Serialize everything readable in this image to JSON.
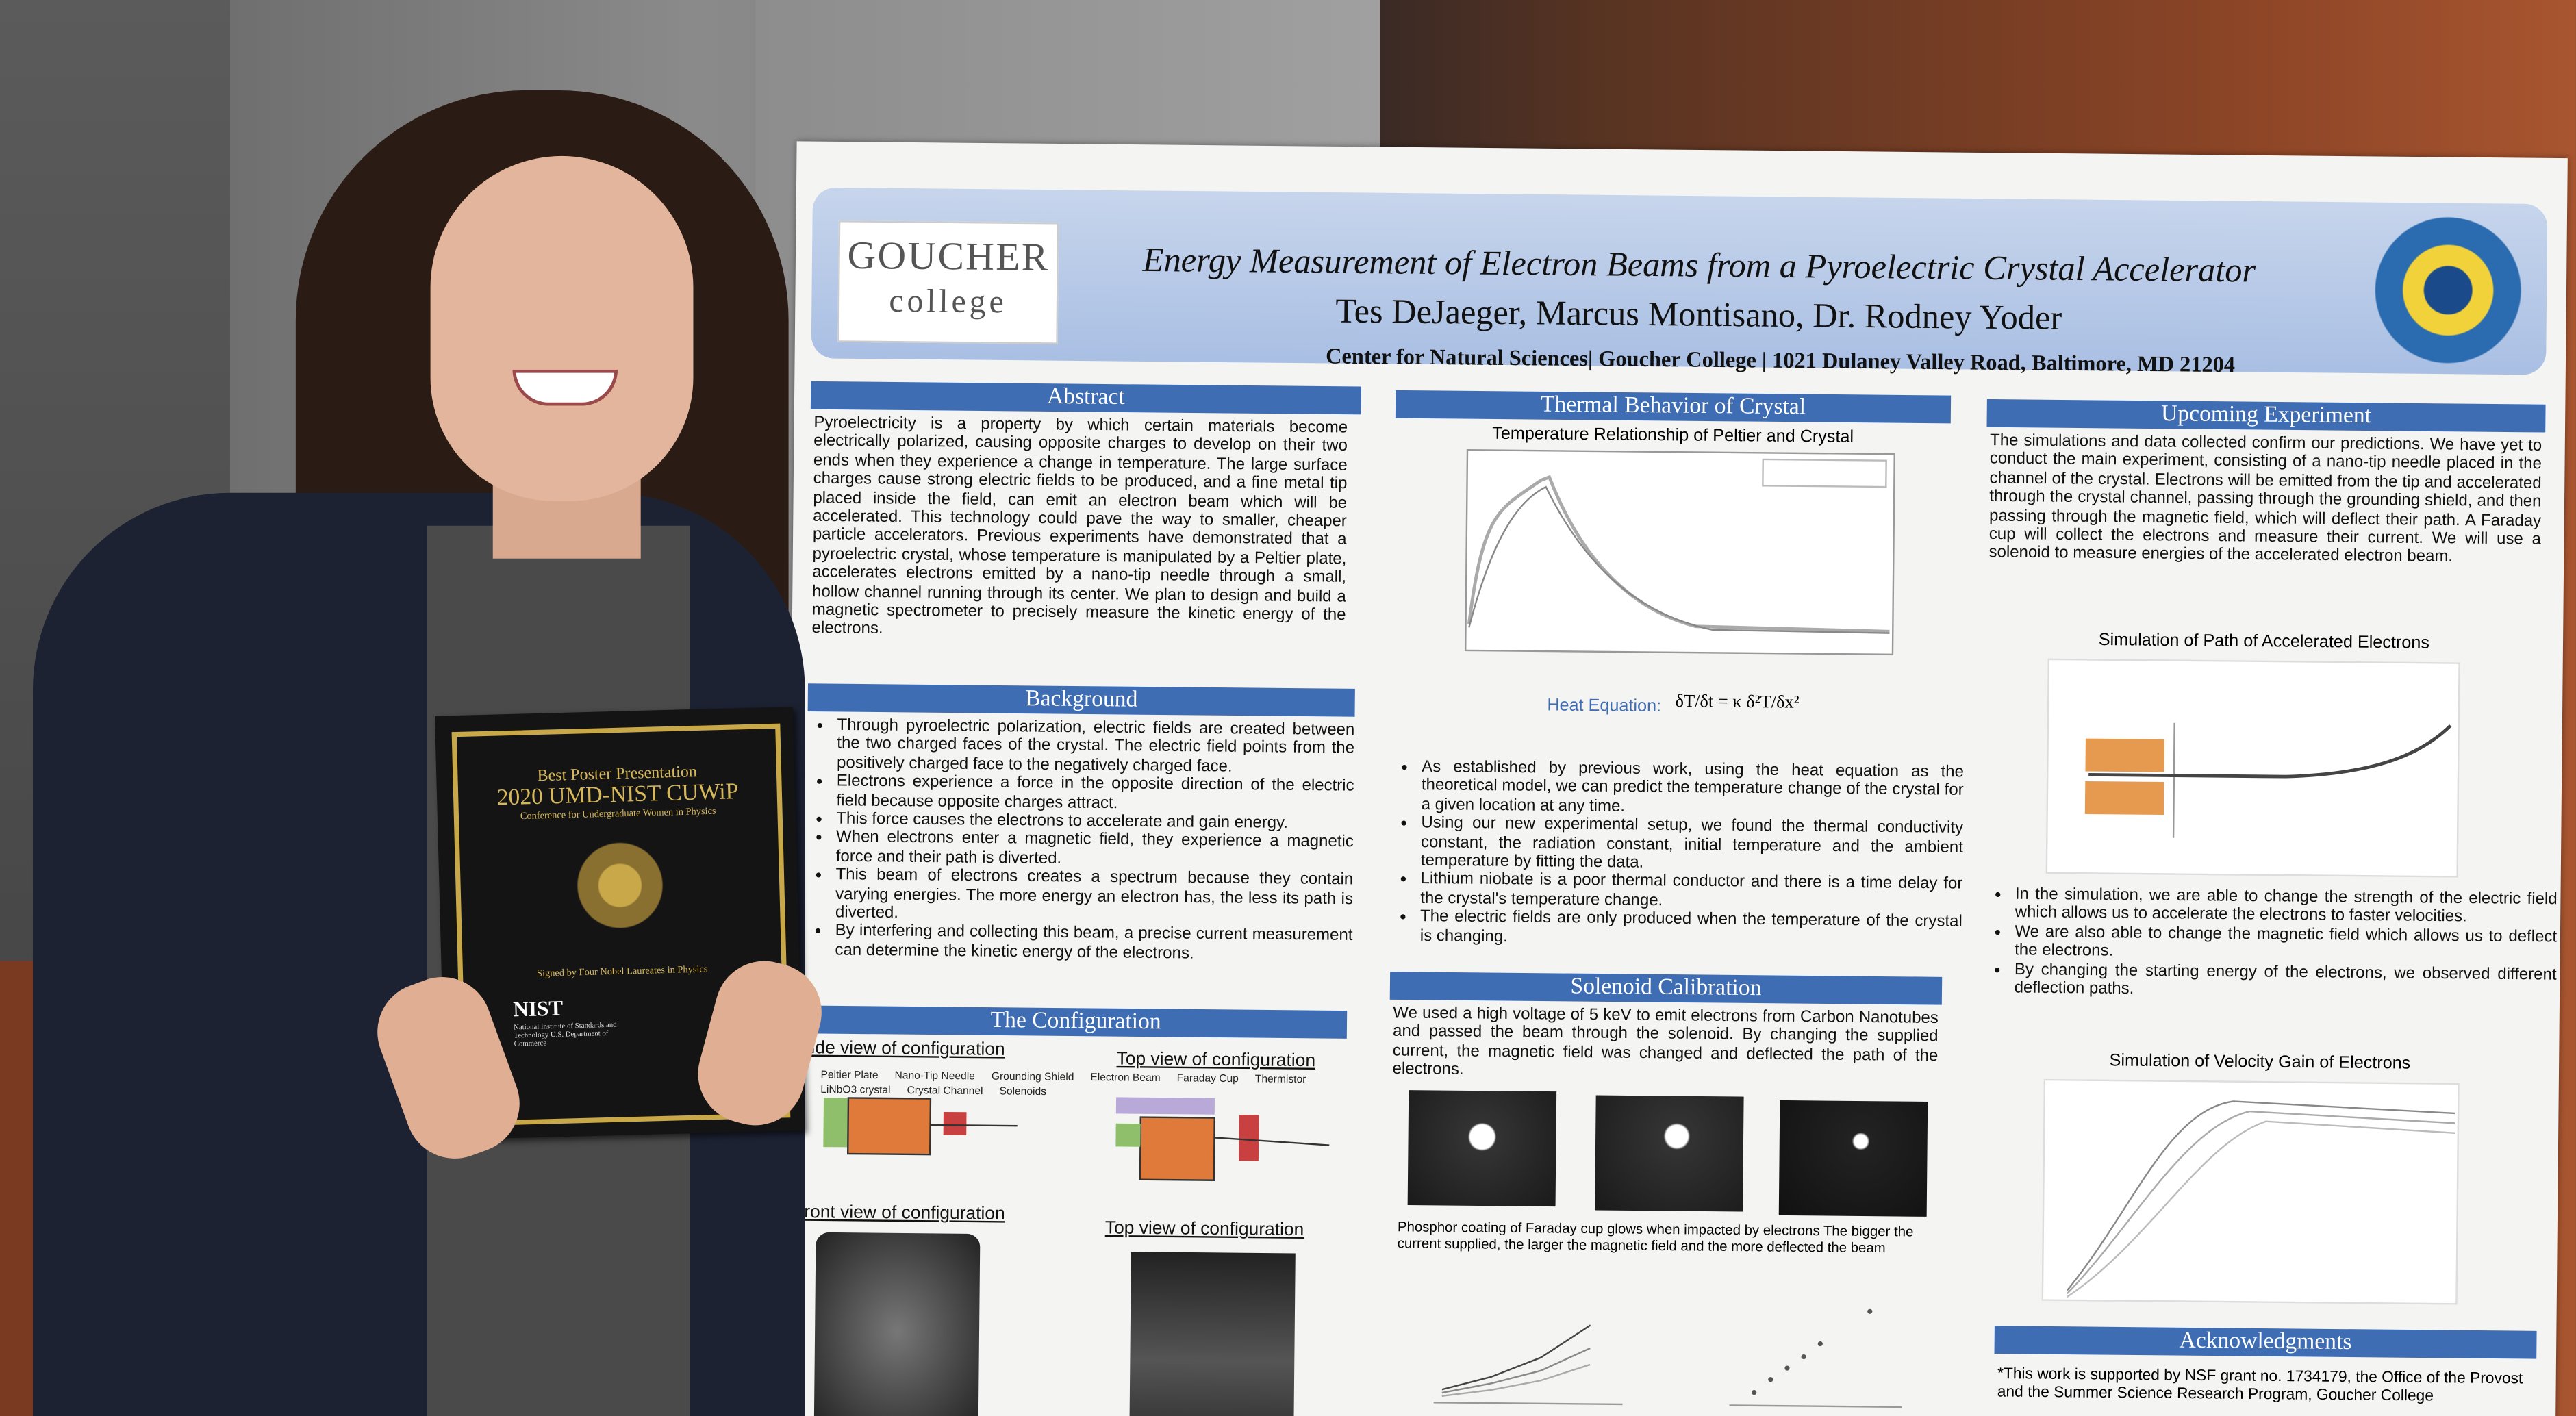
{
  "plaque": {
    "award": "Best Poster Presentation",
    "event": "2020 UMD-NIST CUWiP",
    "subtitle": "Conference for Undergraduate Women in Physics",
    "signed": "Signed by Four Nobel Laureates in Physics",
    "logo": "NIST",
    "logo_caption": "National Institute of Standards and Technology U.S. Department of Commerce"
  },
  "poster": {
    "logo_top": "GOUCHER",
    "logo_bottom": "college",
    "title": "Energy Measurement of Electron Beams from a Pyroelectric Crystal Accelerator",
    "authors": "Tes DeJaeger, Marcus Montisano, Dr. Rodney Yoder",
    "affiliation": "Center for Natural Sciences| Goucher College | 1021 Dulaney Valley Road, Baltimore, MD 21204",
    "abstract": {
      "heading": "Abstract",
      "text": "Pyroelectricity is a property by which certain materials become electrically polarized, causing opposite charges to develop on their two ends when they experience a change in temperature. The large surface charges cause strong electric fields to be produced, and a fine metal tip placed inside the field, can emit an electron beam which will be accelerated. This technology could pave the way to smaller, cheaper particle accelerators. Previous experiments have demonstrated that a pyroelectric crystal, whose temperature is manipulated by a Peltier plate, accelerates electrons emitted by a nano-tip needle through a small, hollow channel running through its center. We plan to design and build a magnetic spectrometer to precisely measure the kinetic energy of the electrons."
    },
    "background": {
      "heading": "Background",
      "bullets": [
        "Through pyroelectric polarization, electric fields are created between the two charged faces of the crystal. The electric field points from the positively charged face to the negatively charged face.",
        "Electrons experience a force in the opposite direction of the electric field because opposite charges attract.",
        "This force causes the electrons to accelerate and gain energy.",
        "When electrons enter a magnetic field, they experience a magnetic force and their path is diverted.",
        "This beam of electrons creates a spectrum because they contain varying energies. The more energy an electron has, the less its path is diverted.",
        "By interfering and collecting this beam, a precise current measurement can determine the kinetic energy of the electrons."
      ]
    },
    "configuration": {
      "heading": "The Configuration",
      "side_view": "ide view of configuration",
      "top_view": "Top view of configuration",
      "front_view": "Front view of configuration",
      "top_view_photo": "Top view of configuration",
      "labels": [
        "Peltier Plate",
        "Nano-Tip Needle",
        "Grounding Shield",
        "Electron Beam",
        "Faraday Cup",
        "Thermistor",
        "LiNbO3 crystal",
        "Crystal Channel",
        "Solenoids"
      ]
    },
    "thermal": {
      "heading": "Thermal Behavior of Crystal",
      "chart_title": "Temperature Relationship of Peltier and Crystal",
      "equation_label": "Heat Equation:",
      "equation": "δT/δt = κ δ²T/δx²",
      "bullets": [
        "As established by previous work, using the heat equation as the theoretical model, we can predict the temperature change of the crystal for a given location at any time.",
        "Using our new experimental setup, we found the thermal conductivity constant, the radiation constant, initial temperature and the ambient temperature by fitting the data.",
        "Lithium niobate is a poor thermal conductor and there is a time delay for the crystal's temperature change.",
        "The electric fields are only produced when the temperature of the crystal is changing."
      ]
    },
    "solenoid": {
      "heading": "Solenoid Calibration",
      "text": "We used a high voltage of 5 keV to emit electrons from Carbon Nanotubes and passed the beam through the solenoid.  By changing the supplied current, the magnetic field was changed and deflected the path of the electrons.",
      "caption": "Phosphor coating of Faraday cup glows when impacted by electrons  The bigger the current supplied, the larger the magnetic field and the more deflected the beam"
    },
    "upcoming": {
      "heading": "Upcoming Experiment",
      "text": "The simulations and data collected confirm our predictions. We have yet to conduct the main experiment, consisting of a nano-tip needle placed in the channel of the crystal. Electrons will be emitted from the tip and accelerated through the crystal channel, passing through the grounding shield, and then passing through the magnetic field, which will deflect their path. A Faraday cup will collect the electrons and measure their current. We will use a solenoid to measure energies of the accelerated electron beam.",
      "sim1_title": "Simulation of Path of Accelerated Electrons",
      "bullets": [
        "In the simulation, we are able to change the strength of the electric field which allows us to accelerate the electrons to faster velocities.",
        "We are also able to change the magnetic field which allows us to deflect the electrons.",
        "By changing the starting energy of the electrons, we observed different deflection paths."
      ],
      "sim2_title": "Simulation of Velocity Gain of Electrons"
    },
    "acknowledgments": {
      "heading": "Acknowledgments",
      "text": "*This work is supported by NSF grant no. 1734179, the Office of the Provost and the Summer Science Research Program, Goucher College"
    }
  }
}
